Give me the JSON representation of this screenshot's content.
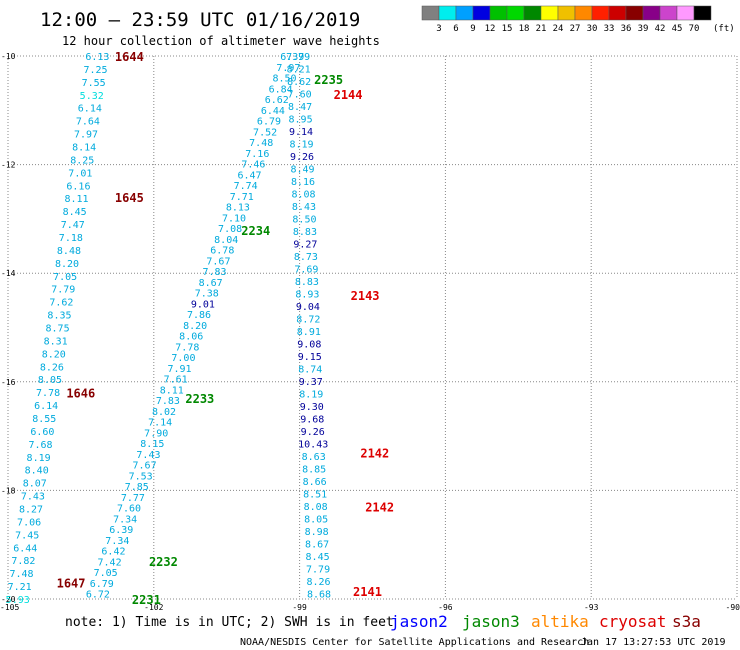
{
  "header": {
    "title": "12:00 — 23:59 UTC 01/16/2019",
    "subtitle": "12 hour collection of altimeter wave heights"
  },
  "legend": {
    "unit": "(ft)",
    "bins": [
      {
        "label": "3",
        "color": "#808080"
      },
      {
        "label": "6",
        "color": "#00eeee"
      },
      {
        "label": "9",
        "color": "#00a0ff"
      },
      {
        "label": "12",
        "color": "#0000e0"
      },
      {
        "label": "15",
        "color": "#00c000"
      },
      {
        "label": "18",
        "color": "#00d800"
      },
      {
        "label": "21",
        "color": "#008800"
      },
      {
        "label": "24",
        "color": "#ffff00"
      },
      {
        "label": "27",
        "color": "#f0c000"
      },
      {
        "label": "30",
        "color": "#ff8800"
      },
      {
        "label": "33",
        "color": "#ff2000"
      },
      {
        "label": "36",
        "color": "#cc0000"
      },
      {
        "label": "39",
        "color": "#880000"
      },
      {
        "label": "42",
        "color": "#880088"
      },
      {
        "label": "45",
        "color": "#cc44cc"
      },
      {
        "label": "70",
        "color": "#ff99ff"
      },
      {
        "label": "",
        "color": "#000000"
      }
    ]
  },
  "footer": {
    "note": "note: 1) Time is in UTC; 2) SWH is in feet",
    "credit": "NOAA/NESDIS Center for Satellite Applications and Research",
    "timestamp": "Jan 17 13:27:53 UTC 2019",
    "satellites": [
      {
        "name": "jason2",
        "color": "#0000ff"
      },
      {
        "name": "jason3",
        "color": "#008800"
      },
      {
        "name": "altika",
        "color": "#ff8800"
      },
      {
        "name": "cryosat",
        "color": "#dd0000"
      },
      {
        "name": "s3a",
        "color": "#880000"
      }
    ]
  },
  "colors": {
    "v_lt_9": "#00aadd",
    "v_ge_9": "#000099",
    "low": "#00dddd",
    "grid": "#888888"
  },
  "chart_data": {
    "type": "scatter",
    "xlim": [
      -105,
      -90
    ],
    "ylim": [
      -20,
      -10
    ],
    "xticks": [
      -105,
      -102,
      -99,
      -96,
      -93,
      -90
    ],
    "yticks": [
      -10,
      -12,
      -14,
      -16,
      -18,
      -20
    ],
    "tracks": [
      {
        "lon_start": -103.16,
        "lat_start": -10.0,
        "lon_end": -104.8,
        "lat_end": -20.0,
        "values": [
          "6.13",
          "7.25",
          "7.55",
          "5.32",
          "6.14",
          "7.64",
          "7.97",
          "8.14",
          "8.25",
          "7.01",
          "6.16",
          "8.11",
          "8.45",
          "7.47",
          "7.18",
          "8.48",
          "8.20",
          "7.05",
          "7.79",
          "7.62",
          "8.35",
          "8.75",
          "8.31",
          "8.20",
          "8.26",
          "8.05",
          "7.78",
          "6.14",
          "8.55",
          "6.60",
          "7.68",
          "8.19",
          "8.40",
          "8.07",
          "7.43",
          "8.27",
          "7.06",
          "7.45",
          "6.44",
          "7.82",
          "7.48",
          "7.21",
          "5.93"
        ]
      },
      {
        "lon_start": -99.15,
        "lat_start": -10.0,
        "lon_end": -103.15,
        "lat_end": -19.9,
        "values": [
          "6.39",
          "7.97",
          "8.50",
          "6.84",
          "6.62",
          "6.44",
          "6.79",
          "7.52",
          "7.48",
          "7.16",
          "7.46",
          "6.47",
          "7.74",
          "7.71",
          "8.13",
          "7.10",
          "7.08",
          "8.04",
          "6.78",
          "7.67",
          "7.83",
          "8.67",
          "7.38",
          "9.01",
          "7.86",
          "8.20",
          "8.06",
          "7.78",
          "7.00",
          "7.91",
          "7.61",
          "8.11",
          "7.83",
          "8.02",
          "7.14",
          "7.90",
          "8.15",
          "7.43",
          "7.67",
          "7.53",
          "7.85",
          "7.77",
          "7.60",
          "7.34",
          "6.39",
          "7.34",
          "6.42",
          "7.42",
          "7.05",
          "6.79",
          "6.72"
        ]
      },
      {
        "lon_start": -99.03,
        "lat_start": -10.0,
        "lon_end": -98.6,
        "lat_end": -19.9,
        "values": [
          "7.79",
          "8.21",
          "8.62",
          "7.60",
          "8.47",
          "8.95",
          "9.14",
          "8.19",
          "9.26",
          "8.49",
          "8.16",
          "8.08",
          "8.43",
          "8.50",
          "8.83",
          "9.27",
          "8.73",
          "7.69",
          "8.83",
          "8.93",
          "9.04",
          "8.72",
          "8.91",
          "9.08",
          "9.15",
          "8.74",
          "9.37",
          "8.19",
          "9.30",
          "9.68",
          "9.26",
          "10.43",
          "8.63",
          "8.85",
          "8.66",
          "8.51",
          "8.08",
          "8.05",
          "8.98",
          "8.67",
          "8.45",
          "7.79",
          "8.26",
          "8.68"
        ]
      }
    ],
    "time_labels": [
      {
        "text": "1644",
        "lon": -102.8,
        "lat": -10.0,
        "sat": "s3a"
      },
      {
        "text": "1645",
        "lon": -102.8,
        "lat": -12.6,
        "sat": "s3a"
      },
      {
        "text": "1646",
        "lon": -103.8,
        "lat": -16.2,
        "sat": "s3a"
      },
      {
        "text": "1647",
        "lon": -104.0,
        "lat": -19.7,
        "sat": "s3a"
      },
      {
        "text": "2235",
        "lon": -98.7,
        "lat": -10.42,
        "sat": "jason3"
      },
      {
        "text": "2234",
        "lon": -100.2,
        "lat": -13.2,
        "sat": "jason3"
      },
      {
        "text": "2233",
        "lon": -101.35,
        "lat": -16.3,
        "sat": "jason3"
      },
      {
        "text": "2232",
        "lon": -102.1,
        "lat": -19.3,
        "sat": "jason3"
      },
      {
        "text": "2231",
        "lon": -102.45,
        "lat": -20.0,
        "sat": "jason3"
      },
      {
        "text": "2144",
        "lon": -98.3,
        "lat": -10.7,
        "sat": "cryosat"
      },
      {
        "text": "2143",
        "lon": -97.95,
        "lat": -14.4,
        "sat": "cryosat"
      },
      {
        "text": "2142",
        "lon": -97.75,
        "lat": -17.3,
        "sat": "cryosat"
      },
      {
        "text": "2142",
        "lon": -97.65,
        "lat": -18.3,
        "sat": "cryosat"
      },
      {
        "text": "2141",
        "lon": -97.9,
        "lat": -19.85,
        "sat": "cryosat"
      }
    ]
  }
}
